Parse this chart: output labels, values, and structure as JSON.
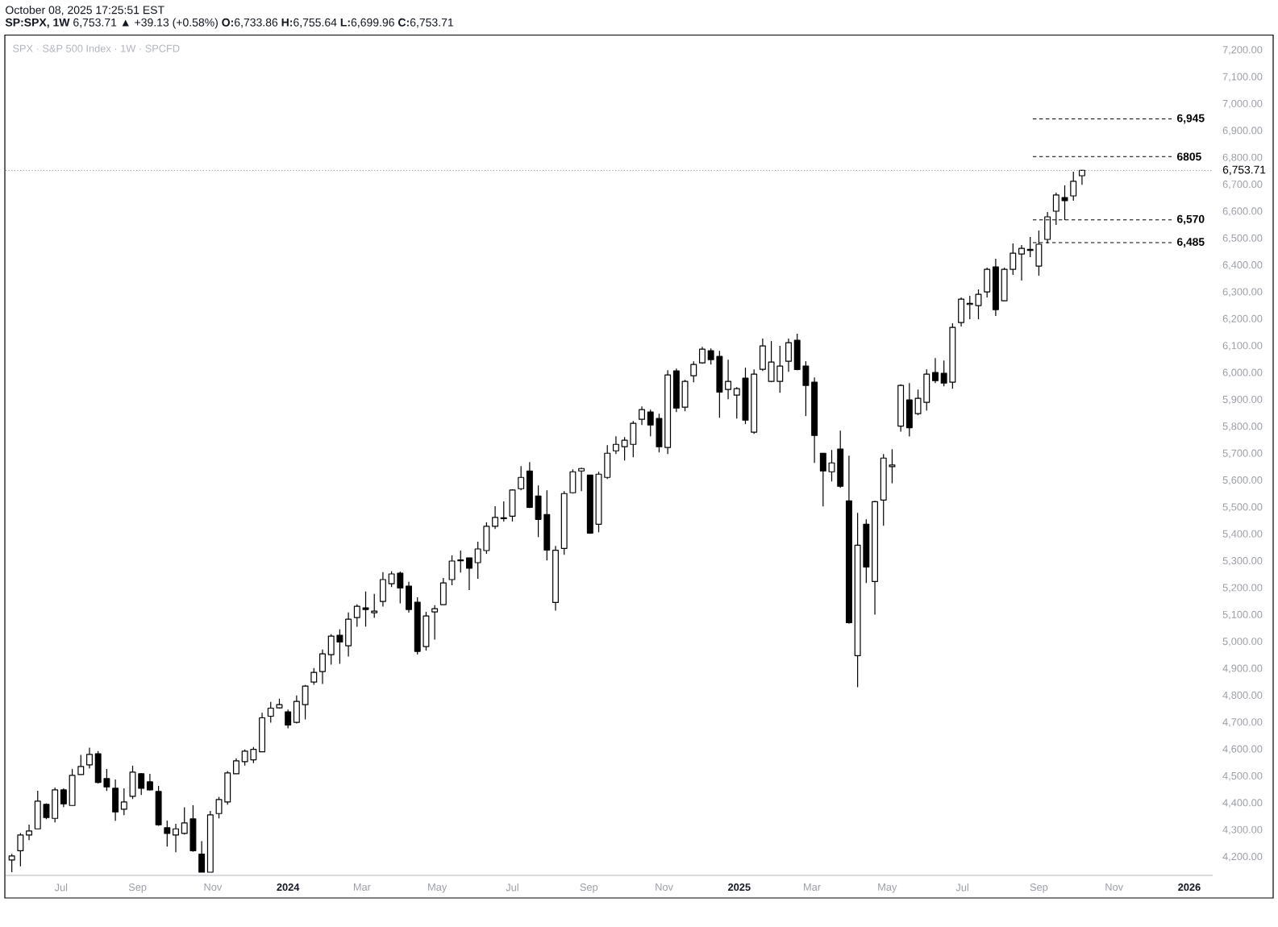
{
  "chart_data": {
    "type": "candlestick",
    "title": "SPX · S&P 500 Index · 1W · SPCFD",
    "subtitle": "**SP:SPX, 1W** 6,753.71 ▲ +39.13 (+0.58%) **O:**6,733.86 **H:**6,755.64 **L:**6,699.96 **C:**6,753.71",
    "annotations": [
      "October 08, 2025 17:25:51 EST"
    ],
    "color": "#000000",
    "x": [
      "2023-05-22",
      "2023-05-29",
      "2023-06-05",
      "2023-06-12",
      "2023-06-19",
      "2023-06-26",
      "2023-07-03",
      "2023-07-10",
      "2023-07-17",
      "2023-07-24",
      "2023-07-31",
      "2023-08-07",
      "2023-08-14",
      "2023-08-21",
      "2023-08-28",
      "2023-09-04",
      "2023-09-11",
      "2023-09-18",
      "2023-09-25",
      "2023-10-02",
      "2023-10-09",
      "2023-10-16",
      "2023-10-23",
      "2023-10-30",
      "2023-11-06",
      "2023-11-13",
      "2023-11-20",
      "2023-11-27",
      "2023-12-04",
      "2023-12-11",
      "2023-12-18",
      "2023-12-25",
      "2024-01-01",
      "2024-01-08",
      "2024-01-15",
      "2024-01-22",
      "2024-01-29",
      "2024-02-05",
      "2024-02-12",
      "2024-02-19",
      "2024-02-26",
      "2024-03-04",
      "2024-03-11",
      "2024-03-18",
      "2024-03-25",
      "2024-04-01",
      "2024-04-08",
      "2024-04-15",
      "2024-04-22",
      "2024-04-29",
      "2024-05-06",
      "2024-05-13",
      "2024-05-20",
      "2024-05-27",
      "2024-06-03",
      "2024-06-10",
      "2024-06-17",
      "2024-06-24",
      "2024-07-01",
      "2024-07-08",
      "2024-07-15",
      "2024-07-22",
      "2024-07-29",
      "2024-08-05",
      "2024-08-12",
      "2024-08-19",
      "2024-08-26",
      "2024-09-02",
      "2024-09-09",
      "2024-09-16",
      "2024-09-23",
      "2024-09-30",
      "2024-10-07",
      "2024-10-14",
      "2024-10-21",
      "2024-10-28",
      "2024-11-04",
      "2024-11-11",
      "2024-11-18",
      "2024-11-25",
      "2024-12-02",
      "2024-12-09",
      "2024-12-16",
      "2024-12-23",
      "2024-12-30",
      "2025-01-06",
      "2025-01-13",
      "2025-01-20",
      "2025-01-27",
      "2025-02-03",
      "2025-02-10",
      "2025-02-17",
      "2025-02-24",
      "2025-03-03",
      "2025-03-10",
      "2025-03-17",
      "2025-03-24",
      "2025-03-31",
      "2025-04-07",
      "2025-04-14",
      "2025-04-21",
      "2025-04-28",
      "2025-05-05",
      "2025-05-12",
      "2025-05-19",
      "2025-05-26",
      "2025-06-02",
      "2025-06-09",
      "2025-06-16",
      "2025-06-23",
      "2025-06-30",
      "2025-07-07",
      "2025-07-14",
      "2025-07-21",
      "2025-07-28",
      "2025-08-04",
      "2025-08-11",
      "2025-08-18",
      "2025-08-25",
      "2025-09-01",
      "2025-09-08",
      "2025-09-15",
      "2025-09-22",
      "2025-09-29",
      "2025-10-06"
    ],
    "ohlc": [
      [
        4189,
        4212,
        4144,
        4204
      ],
      [
        4224,
        4289,
        4166,
        4282
      ],
      [
        4282,
        4321,
        4263,
        4297
      ],
      [
        4305,
        4447,
        4305,
        4408
      ],
      [
        4396,
        4400,
        4341,
        4347
      ],
      [
        4344,
        4459,
        4329,
        4450
      ],
      [
        4450,
        4456,
        4386,
        4398
      ],
      [
        4392,
        4528,
        4392,
        4504
      ],
      [
        4507,
        4580,
        4507,
        4537
      ],
      [
        4543,
        4607,
        4530,
        4582
      ],
      [
        4584,
        4594,
        4474,
        4478
      ],
      [
        4492,
        4528,
        4446,
        4461
      ],
      [
        4456,
        4489,
        4335,
        4368
      ],
      [
        4378,
        4456,
        4356,
        4405
      ],
      [
        4426,
        4540,
        4416,
        4516
      ],
      [
        4510,
        4513,
        4431,
        4456
      ],
      [
        4480,
        4510,
        4448,
        4450
      ],
      [
        4444,
        4465,
        4316,
        4320
      ],
      [
        4309,
        4336,
        4239,
        4288
      ],
      [
        4282,
        4324,
        4218,
        4305
      ],
      [
        4288,
        4385,
        4284,
        4327
      ],
      [
        4342,
        4393,
        4220,
        4224
      ],
      [
        4211,
        4259,
        4144,
        4144
      ],
      [
        4144,
        4372,
        4144,
        4357
      ],
      [
        4362,
        4424,
        4344,
        4414
      ],
      [
        4405,
        4520,
        4395,
        4513
      ],
      [
        4510,
        4567,
        4510,
        4558
      ],
      [
        4555,
        4600,
        4540,
        4594
      ],
      [
        4562,
        4609,
        4549,
        4601
      ],
      [
        4592,
        4737,
        4592,
        4718
      ],
      [
        4724,
        4777,
        4700,
        4754
      ],
      [
        4755,
        4789,
        4752,
        4767
      ],
      [
        4740,
        4749,
        4679,
        4691
      ],
      [
        4701,
        4801,
        4697,
        4779
      ],
      [
        4767,
        4840,
        4712,
        4836
      ],
      [
        4851,
        4903,
        4841,
        4887
      ],
      [
        4890,
        4972,
        4844,
        4956
      ],
      [
        4953,
        5029,
        4916,
        5022
      ],
      [
        5025,
        5047,
        4919,
        5000
      ],
      [
        4986,
        5110,
        4946,
        5085
      ],
      [
        5091,
        5140,
        5057,
        5133
      ],
      [
        5127,
        5188,
        5057,
        5121
      ],
      [
        5109,
        5179,
        5090,
        5115
      ],
      [
        5151,
        5260,
        5132,
        5232
      ],
      [
        5217,
        5263,
        5204,
        5253
      ],
      [
        5256,
        5262,
        5144,
        5201
      ],
      [
        5208,
        5224,
        5109,
        5121
      ],
      [
        5148,
        5166,
        4953,
        4965
      ],
      [
        4983,
        5112,
        4968,
        5097
      ],
      [
        5112,
        5137,
        5009,
        5124
      ],
      [
        5139,
        5238,
        5139,
        5220
      ],
      [
        5232,
        5322,
        5211,
        5301
      ],
      [
        5302,
        5340,
        5258,
        5305
      ],
      [
        5313,
        5313,
        5193,
        5274
      ],
      [
        5295,
        5373,
        5235,
        5346
      ],
      [
        5340,
        5445,
        5328,
        5430
      ],
      [
        5430,
        5505,
        5420,
        5463
      ],
      [
        5459,
        5523,
        5448,
        5462
      ],
      [
        5468,
        5568,
        5448,
        5565
      ],
      [
        5570,
        5654,
        5564,
        5612
      ],
      [
        5636,
        5669,
        5498,
        5501
      ],
      [
        5543,
        5582,
        5390,
        5456
      ],
      [
        5474,
        5564,
        5303,
        5342
      ],
      [
        5147,
        5357,
        5117,
        5341
      ],
      [
        5348,
        5561,
        5324,
        5552
      ],
      [
        5555,
        5642,
        5552,
        5633
      ],
      [
        5636,
        5648,
        5561,
        5645
      ],
      [
        5621,
        5621,
        5402,
        5405
      ],
      [
        5438,
        5633,
        5408,
        5624
      ],
      [
        5612,
        5732,
        5606,
        5702
      ],
      [
        5711,
        5765,
        5699,
        5735
      ],
      [
        5726,
        5762,
        5675,
        5750
      ],
      [
        5735,
        5822,
        5687,
        5813
      ],
      [
        5828,
        5876,
        5807,
        5864
      ],
      [
        5855,
        5864,
        5765,
        5807
      ],
      [
        5831,
        5849,
        5705,
        5726
      ],
      [
        5723,
        6011,
        5699,
        5993
      ],
      [
        6008,
        6017,
        5855,
        5870
      ],
      [
        5873,
        5975,
        5858,
        5969
      ],
      [
        5990,
        6044,
        5966,
        6032
      ],
      [
        6038,
        6098,
        6035,
        6089
      ],
      [
        6083,
        6092,
        6032,
        6050
      ],
      [
        6062,
        6083,
        5834,
        5929
      ],
      [
        5939,
        6050,
        5903,
        5969
      ],
      [
        5918,
        5948,
        5831,
        5942
      ],
      [
        5981,
        6020,
        5810,
        5825
      ],
      [
        5780,
        6014,
        5774,
        5996
      ],
      [
        6014,
        6128,
        6008,
        6101
      ],
      [
        5969,
        6119,
        5966,
        6041
      ],
      [
        5969,
        6101,
        5927,
        6026
      ],
      [
        6044,
        6128,
        6005,
        6113
      ],
      [
        6122,
        6146,
        6011,
        6013
      ],
      [
        6026,
        6044,
        5840,
        5954
      ],
      [
        5966,
        5984,
        5666,
        5768
      ],
      [
        5702,
        5702,
        5504,
        5636
      ],
      [
        5633,
        5714,
        5597,
        5666
      ],
      [
        5717,
        5786,
        5573,
        5579
      ],
      [
        5525,
        5693,
        5068,
        5072
      ],
      [
        4949,
        5480,
        4832,
        5360
      ],
      [
        5438,
        5456,
        5219,
        5279
      ],
      [
        5225,
        5525,
        5102,
        5522
      ],
      [
        5528,
        5699,
        5432,
        5684
      ],
      [
        5652,
        5717,
        5590,
        5658
      ],
      [
        5803,
        5958,
        5782,
        5954
      ],
      [
        5900,
        5963,
        5764,
        5797
      ],
      [
        5849,
        5939,
        5843,
        5906
      ],
      [
        5891,
        6014,
        5861,
        5996
      ],
      [
        6002,
        6056,
        5963,
        5972
      ],
      [
        5999,
        6047,
        5951,
        5963
      ],
      [
        5966,
        6185,
        5942,
        6170
      ],
      [
        6188,
        6281,
        6173,
        6275
      ],
      [
        6255,
        6287,
        6200,
        6259
      ],
      [
        6251,
        6311,
        6200,
        6293
      ],
      [
        6302,
        6392,
        6281,
        6386
      ],
      [
        6395,
        6425,
        6212,
        6236
      ],
      [
        6269,
        6392,
        6268,
        6386
      ],
      [
        6386,
        6482,
        6365,
        6446
      ],
      [
        6443,
        6476,
        6344,
        6464
      ],
      [
        6456,
        6506,
        6431,
        6460
      ],
      [
        6398,
        6530,
        6362,
        6479
      ],
      [
        6497,
        6599,
        6482,
        6581
      ],
      [
        6602,
        6671,
        6551,
        6662
      ],
      [
        6653,
        6698,
        6569,
        6641
      ],
      [
        6659,
        6749,
        6641,
        6713
      ],
      [
        6733.86,
        6755.64,
        6699.96,
        6753.71
      ]
    ],
    "xlim": [
      "2023-05-17",
      "2026-01-20"
    ],
    "xticks": [
      {
        "value": "2023-07",
        "label": "Jul"
      },
      {
        "value": "2023-09",
        "label": "Sep"
      },
      {
        "value": "2023-11",
        "label": "Nov"
      },
      {
        "value": "2024-01",
        "label": "2024"
      },
      {
        "value": "2024-03",
        "label": "Mar"
      },
      {
        "value": "2024-05",
        "label": "May"
      },
      {
        "value": "2024-07",
        "label": "Jul"
      },
      {
        "value": "2024-09",
        "label": "Sep"
      },
      {
        "value": "2024-11",
        "label": "Nov"
      },
      {
        "value": "2025-01",
        "label": "2025"
      },
      {
        "value": "2025-03",
        "label": "Mar"
      },
      {
        "value": "2025-05",
        "label": "May"
      },
      {
        "value": "2025-07",
        "label": "Jul"
      },
      {
        "value": "2025-09",
        "label": "Sep"
      },
      {
        "value": "2025-11",
        "label": "Nov"
      },
      {
        "value": "2026-01",
        "label": "2026"
      }
    ],
    "ylim": [
      4132,
      7257
    ],
    "yticks": [
      {
        "value": 4200,
        "label": "4,200.00"
      },
      {
        "value": 4300,
        "label": "4,300.00"
      },
      {
        "value": 4400,
        "label": "4,400.00"
      },
      {
        "value": 4500,
        "label": "4,500.00"
      },
      {
        "value": 4600,
        "label": "4,600.00"
      },
      {
        "value": 4700,
        "label": "4,700.00"
      },
      {
        "value": 4800,
        "label": "4,800.00"
      },
      {
        "value": 4900,
        "label": "4,900.00"
      },
      {
        "value": 5000,
        "label": "5,000.00"
      },
      {
        "value": 5100,
        "label": "5,100.00"
      },
      {
        "value": 5200,
        "label": "5,200.00"
      },
      {
        "value": 5300,
        "label": "5,300.00"
      },
      {
        "value": 5400,
        "label": "5,400.00"
      },
      {
        "value": 5500,
        "label": "5,500.00"
      },
      {
        "value": 5600,
        "label": "5,600.00"
      },
      {
        "value": 5700,
        "label": "5,700.00"
      },
      {
        "value": 5800,
        "label": "5,800.00"
      },
      {
        "value": 5900,
        "label": "5,900.00"
      },
      {
        "value": 6000,
        "label": "6,000.00"
      },
      {
        "value": 6100,
        "label": "6,100.00"
      },
      {
        "value": 6200,
        "label": "6,200.00"
      },
      {
        "value": 6300,
        "label": "6,300.00"
      },
      {
        "value": 6400,
        "label": "6,400.00"
      },
      {
        "value": 6500,
        "label": "6,500.00"
      },
      {
        "value": 6600,
        "label": "6,600.00"
      },
      {
        "value": 6700,
        "label": "6,700.00"
      },
      {
        "value": 6800,
        "label": "6,800.00"
      },
      {
        "value": 6900,
        "label": "6,900.00"
      },
      {
        "value": 7000,
        "label": "7,000.00"
      },
      {
        "value": 7100,
        "label": "7,100.00"
      },
      {
        "value": 7200,
        "label": "7,200.00"
      }
    ],
    "ref_lines": [
      {
        "axis": "y",
        "value": 6945,
        "label": "6,945",
        "color": "#000000",
        "line_style": "dashed"
      },
      {
        "axis": "y",
        "value": 6805,
        "label": "6805",
        "color": "#000000",
        "line_style": "dashed"
      },
      {
        "axis": "y",
        "value": 6570,
        "label": "6,570",
        "color": "#000000",
        "line_style": "dashed"
      },
      {
        "axis": "y",
        "value": 6485,
        "label": "6,485",
        "color": "#000000",
        "line_style": "dashed"
      },
      {
        "axis": "y",
        "value": 6753.71,
        "label": "6,753.71",
        "color": "#9598a1",
        "line_style": "dotted"
      }
    ]
  }
}
